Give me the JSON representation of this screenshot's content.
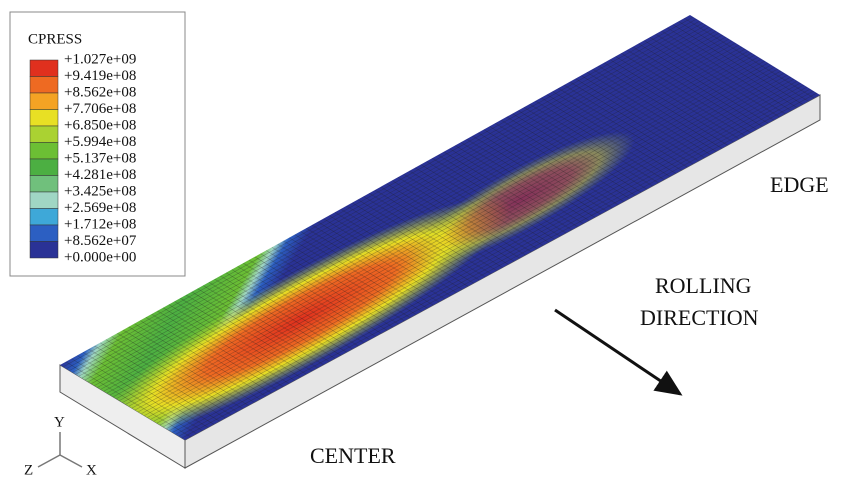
{
  "legend": {
    "title": "CPRESS",
    "labels": [
      "+1.027e+09",
      "+9.419e+08",
      "+8.562e+08",
      "+7.706e+08",
      "+6.850e+08",
      "+5.994e+08",
      "+5.137e+08",
      "+4.281e+08",
      "+3.425e+08",
      "+2.569e+08",
      "+1.712e+08",
      "+8.562e+07",
      "+0.000e+00"
    ],
    "colors": [
      "#e0301e",
      "#ee6a22",
      "#f4a324",
      "#e8e024",
      "#aad232",
      "#6cbf34",
      "#4caf42",
      "#70c07c",
      "#a0d6c4",
      "#3ea8d8",
      "#2c5fc2",
      "#2a3296"
    ]
  },
  "annotations": {
    "edge": "EDGE",
    "rolling": "ROLLING",
    "direction": "DIRECTION",
    "center": "CENTER"
  },
  "triad": {
    "y": "Y",
    "z": "Z",
    "x": "X"
  }
}
